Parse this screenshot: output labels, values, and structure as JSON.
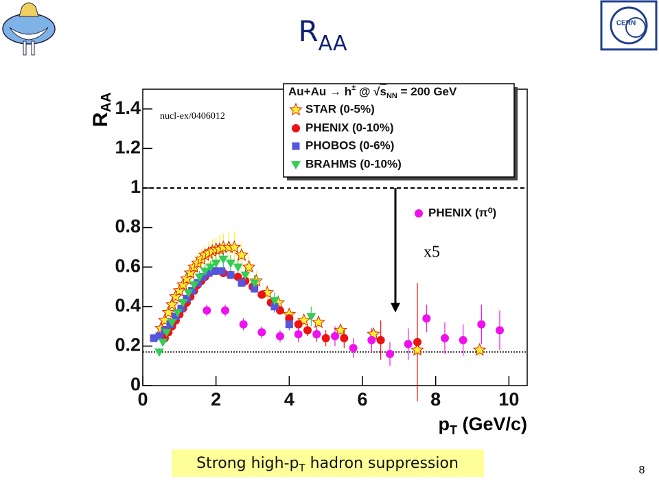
{
  "logo_text": "CERN",
  "page_number": "8",
  "caption": {
    "text": "Strong high-p",
    "sub": "T",
    "rest": " hadron suppression"
  },
  "chart_data": {
    "type": "scatter",
    "title": {
      "text": "R",
      "sub": "AA"
    },
    "ylabel": {
      "text": "R",
      "sub": "AA"
    },
    "xlabel": {
      "text": "p",
      "sub": "T",
      "rest": " (GeV/c)"
    },
    "legend_title": [
      "Au+Au → h",
      "±",
      " @ √",
      "s",
      "NN",
      " = 200 GeV"
    ],
    "annotations": [
      "nucl-ex/0406012",
      "x5"
    ],
    "xlim": [
      0,
      10.5
    ],
    "ylim": [
      0,
      1.5
    ],
    "xticks": [
      0,
      2,
      4,
      6,
      8,
      10
    ],
    "yticks": [
      0,
      0.2,
      0.4,
      0.6,
      0.8,
      1,
      1.2,
      1.4
    ],
    "reference_lines": [
      {
        "value": 1,
        "style": "dashed"
      },
      {
        "value": 0.17,
        "style": "dotted"
      }
    ],
    "arrow": {
      "x": 6.9,
      "from": 1,
      "to": 0.37
    },
    "series": [
      {
        "name": "STAR (0-5%)",
        "marker": "star",
        "color": "#ffee33",
        "x": [
          0.5,
          0.6,
          0.7,
          0.8,
          0.9,
          1.0,
          1.1,
          1.2,
          1.3,
          1.4,
          1.5,
          1.6,
          1.7,
          1.8,
          1.9,
          2.0,
          2.1,
          2.2,
          2.35,
          2.5,
          2.7,
          2.9,
          3.1,
          3.4,
          3.7,
          4.0,
          4.4,
          4.8,
          5.4,
          6.3,
          7.5,
          9.2
        ],
        "values": [
          0.29,
          0.33,
          0.37,
          0.41,
          0.45,
          0.48,
          0.51,
          0.54,
          0.57,
          0.6,
          0.62,
          0.64,
          0.66,
          0.67,
          0.68,
          0.69,
          0.69,
          0.7,
          0.7,
          0.7,
          0.66,
          0.6,
          0.53,
          0.47,
          0.42,
          0.36,
          0.33,
          0.32,
          0.28,
          0.26,
          0.18,
          0.18
        ],
        "errors": [
          0.02,
          0.02,
          0.02,
          0.03,
          0.03,
          0.03,
          0.03,
          0.04,
          0.04,
          0.04,
          0.05,
          0.05,
          0.05,
          0.06,
          0.06,
          0.06,
          0.07,
          0.07,
          0.08,
          0.08,
          0.07,
          0.06,
          0.05,
          0.04,
          0.04,
          0.03,
          0.03,
          0.03,
          0.03,
          0.03,
          0.03,
          0.03
        ]
      },
      {
        "name": "PHENIX (0-10%)",
        "marker": "circle",
        "color": "#ee1111",
        "x": [
          0.6,
          0.7,
          0.8,
          0.9,
          1.0,
          1.1,
          1.2,
          1.3,
          1.4,
          1.5,
          1.6,
          1.7,
          1.8,
          1.9,
          2.0,
          2.2,
          2.4,
          2.6,
          2.8,
          3.0,
          3.25,
          3.5,
          3.75,
          4.0,
          4.25,
          4.5,
          4.75,
          5.0,
          5.5,
          6.5,
          7.5
        ],
        "values": [
          0.24,
          0.27,
          0.3,
          0.33,
          0.36,
          0.39,
          0.42,
          0.45,
          0.48,
          0.51,
          0.53,
          0.55,
          0.57,
          0.58,
          0.58,
          0.57,
          0.56,
          0.55,
          0.53,
          0.5,
          0.46,
          0.42,
          0.38,
          0.34,
          0.31,
          0.28,
          0.26,
          0.24,
          0.24,
          0.23,
          0.22
        ],
        "errors": [
          0.01,
          0.01,
          0.01,
          0.01,
          0.01,
          0.01,
          0.01,
          0.01,
          0.01,
          0.01,
          0.01,
          0.01,
          0.01,
          0.01,
          0.01,
          0.01,
          0.01,
          0.01,
          0.01,
          0.02,
          0.02,
          0.02,
          0.02,
          0.02,
          0.02,
          0.03,
          0.03,
          0.04,
          0.05,
          0.1,
          0.3
        ]
      },
      {
        "name": "PHOBOS (0-6%)",
        "marker": "square",
        "color": "#5555dd",
        "x": [
          0.3,
          0.45,
          0.6,
          0.75,
          0.9,
          1.05,
          1.2,
          1.35,
          1.5,
          1.65,
          1.8,
          1.95,
          2.15,
          2.4,
          2.7,
          3.05,
          3.6,
          4.0
        ],
        "values": [
          0.24,
          0.25,
          0.28,
          0.31,
          0.35,
          0.39,
          0.44,
          0.48,
          0.52,
          0.55,
          0.57,
          0.58,
          0.58,
          0.56,
          0.52,
          0.49,
          0.4,
          0.31
        ],
        "errors": [
          0.02,
          0.02,
          0.02,
          0.02,
          0.02,
          0.02,
          0.02,
          0.02,
          0.02,
          0.02,
          0.02,
          0.02,
          0.02,
          0.02,
          0.02,
          0.02,
          0.03,
          0.03
        ]
      },
      {
        "name": "BRAHMS (0-10%)",
        "marker": "triangle",
        "color": "#33cc55",
        "x": [
          0.45,
          0.55,
          0.65,
          0.8,
          0.95,
          1.1,
          1.25,
          1.4,
          1.55,
          1.7,
          1.85,
          2.0,
          2.2,
          2.4,
          2.6,
          2.8,
          3.05,
          3.6,
          4.6
        ],
        "values": [
          0.17,
          0.22,
          0.27,
          0.32,
          0.37,
          0.42,
          0.47,
          0.51,
          0.55,
          0.58,
          0.6,
          0.62,
          0.64,
          0.62,
          0.6,
          0.56,
          0.52,
          0.43,
          0.35
        ],
        "errors": [
          0.02,
          0.02,
          0.02,
          0.02,
          0.02,
          0.03,
          0.03,
          0.03,
          0.03,
          0.03,
          0.03,
          0.03,
          0.04,
          0.04,
          0.04,
          0.04,
          0.04,
          0.04,
          0.05
        ]
      },
      {
        "name": "PHENIX (π⁰)",
        "marker": "circle",
        "color": "#ee11ee",
        "x": [
          1.75,
          2.25,
          2.75,
          3.25,
          3.75,
          4.25,
          4.75,
          5.25,
          5.75,
          6.25,
          6.75,
          7.25,
          7.75,
          8.25,
          8.75,
          9.25,
          9.75
        ],
        "values": [
          0.38,
          0.38,
          0.31,
          0.27,
          0.25,
          0.26,
          0.26,
          0.25,
          0.19,
          0.23,
          0.16,
          0.21,
          0.34,
          0.24,
          0.23,
          0.31,
          0.28
        ],
        "errors": [
          0.03,
          0.03,
          0.03,
          0.03,
          0.03,
          0.04,
          0.04,
          0.05,
          0.05,
          0.06,
          0.06,
          0.08,
          0.07,
          0.08,
          0.08,
          0.1,
          0.1
        ]
      }
    ]
  }
}
